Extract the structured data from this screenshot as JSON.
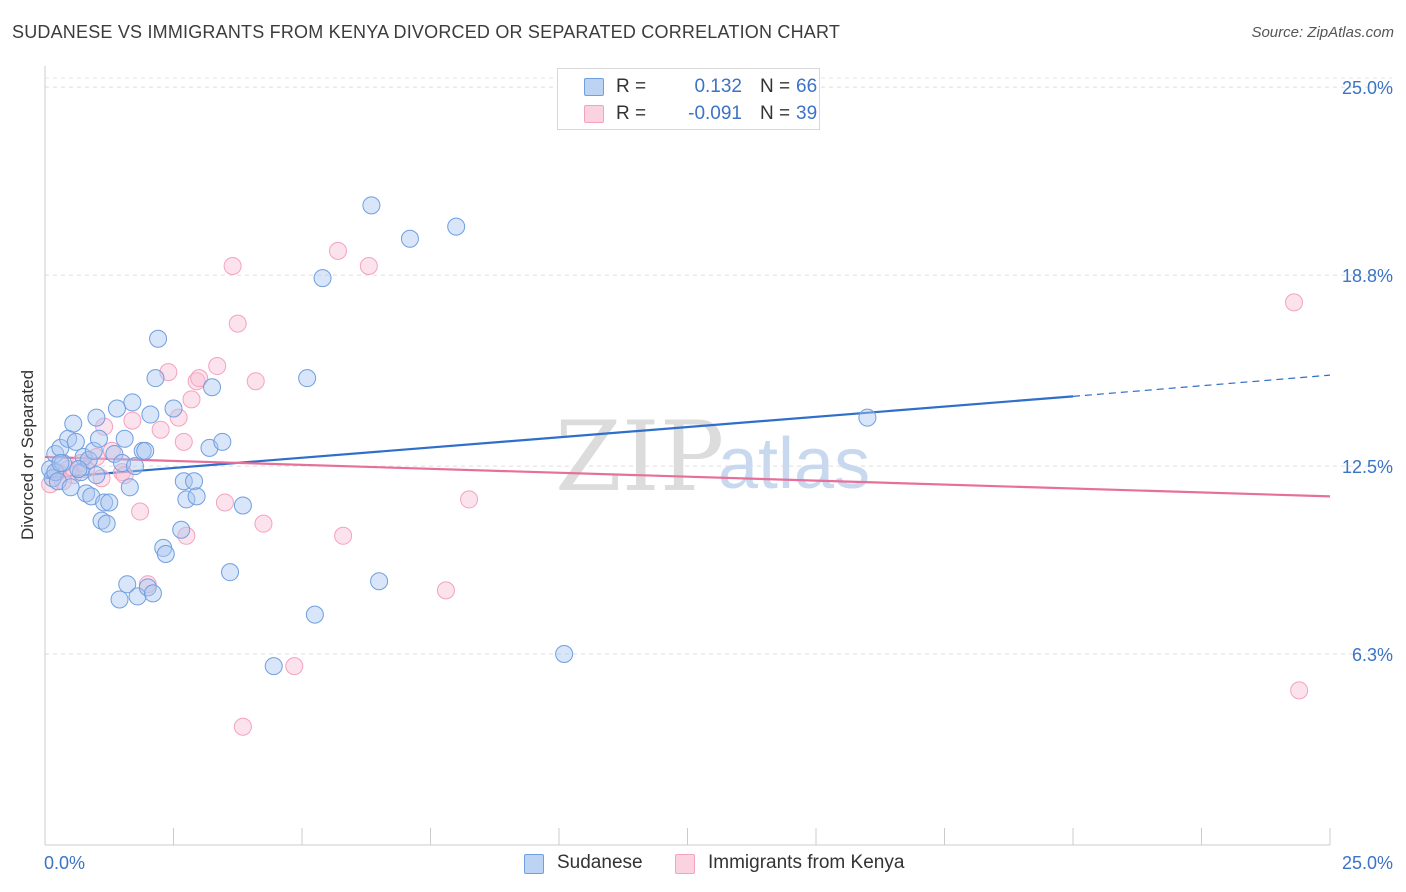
{
  "title": "SUDANESE VS IMMIGRANTS FROM KENYA DIVORCED OR SEPARATED CORRELATION CHART",
  "source": "Source: ZipAtlas.com",
  "watermark": {
    "zip": "ZIP",
    "atlas": "atlas"
  },
  "legend": {
    "r_label": "R =",
    "n_label": "N =",
    "rows": [
      {
        "r": "0.132",
        "n": "66"
      },
      {
        "r": "-0.091",
        "n": "39"
      }
    ]
  },
  "chart_data": {
    "type": "scatter",
    "title": "SUDANESE VS IMMIGRANTS FROM KENYA DIVORCED OR SEPARATED CORRELATION CHART",
    "xlabel": "",
    "ylabel": "Divorced or Separated",
    "xlim": [
      0,
      25
    ],
    "ylim": [
      0,
      25.5
    ],
    "x_tick_labels": [
      "0.0%",
      "25.0%"
    ],
    "y_ticks": [
      6.3,
      12.5,
      18.8,
      25.0
    ],
    "y_tick_labels": [
      "6.3%",
      "12.5%",
      "18.8%",
      "25.0%"
    ],
    "grid": true,
    "legend_position": "bottom",
    "colors": {
      "sudanese": "#6f9fe0",
      "sudanese_line": "#2f6fc9",
      "kenya": "#f3a3bf",
      "kenya_line": "#e6709a",
      "tick_label": "#3b73c5"
    },
    "series": [
      {
        "name": "Sudanese",
        "r": 0.132,
        "n": 66,
        "trend": {
          "x0": 0,
          "y0": 12.1,
          "x1": 20,
          "y1": 14.8,
          "dash_to_x": 25,
          "dash_to_y": 15.5
        },
        "points": [
          [
            0.1,
            12.4
          ],
          [
            0.15,
            12.1
          ],
          [
            0.2,
            12.3
          ],
          [
            0.25,
            12.0
          ],
          [
            0.2,
            12.9
          ],
          [
            0.35,
            12.6
          ],
          [
            0.3,
            13.1
          ],
          [
            0.45,
            13.4
          ],
          [
            0.5,
            11.8
          ],
          [
            0.55,
            13.9
          ],
          [
            0.6,
            13.3
          ],
          [
            0.7,
            12.3
          ],
          [
            0.75,
            12.8
          ],
          [
            0.8,
            11.6
          ],
          [
            0.85,
            12.7
          ],
          [
            0.9,
            11.5
          ],
          [
            0.95,
            13.0
          ],
          [
            1.0,
            12.2
          ],
          [
            1.0,
            14.1
          ],
          [
            1.05,
            13.4
          ],
          [
            1.1,
            10.7
          ],
          [
            1.15,
            11.3
          ],
          [
            1.2,
            10.6
          ],
          [
            1.25,
            11.3
          ],
          [
            1.35,
            12.9
          ],
          [
            1.4,
            14.4
          ],
          [
            1.45,
            8.1
          ],
          [
            1.5,
            12.6
          ],
          [
            1.55,
            13.4
          ],
          [
            1.6,
            8.6
          ],
          [
            1.65,
            11.8
          ],
          [
            1.7,
            14.6
          ],
          [
            1.8,
            8.2
          ],
          [
            1.9,
            13.0
          ],
          [
            1.95,
            13.0
          ],
          [
            2.0,
            8.5
          ],
          [
            2.05,
            14.2
          ],
          [
            2.1,
            8.3
          ],
          [
            2.15,
            15.4
          ],
          [
            2.2,
            16.7
          ],
          [
            2.3,
            9.8
          ],
          [
            2.35,
            9.6
          ],
          [
            2.5,
            14.4
          ],
          [
            2.65,
            10.4
          ],
          [
            2.7,
            12.0
          ],
          [
            2.75,
            11.4
          ],
          [
            2.9,
            12.0
          ],
          [
            2.95,
            11.5
          ],
          [
            3.2,
            13.1
          ],
          [
            3.25,
            15.1
          ],
          [
            3.45,
            13.3
          ],
          [
            3.6,
            9.0
          ],
          [
            3.85,
            11.2
          ],
          [
            4.45,
            5.9
          ],
          [
            5.1,
            15.4
          ],
          [
            5.25,
            7.6
          ],
          [
            5.4,
            18.7
          ],
          [
            6.35,
            21.1
          ],
          [
            6.5,
            8.7
          ],
          [
            7.1,
            20.0
          ],
          [
            8.0,
            20.4
          ],
          [
            10.1,
            6.3
          ],
          [
            16.0,
            14.1
          ],
          [
            0.3,
            12.6
          ],
          [
            0.65,
            12.4
          ],
          [
            1.75,
            12.5
          ]
        ]
      },
      {
        "name": "Immigrants from Kenya",
        "r": -0.091,
        "n": 39,
        "trend": {
          "x0": 0,
          "y0": 12.8,
          "x1": 25,
          "y1": 11.5
        },
        "points": [
          [
            0.1,
            11.9
          ],
          [
            0.25,
            12.3
          ],
          [
            0.45,
            12.4
          ],
          [
            0.55,
            12.2
          ],
          [
            0.7,
            12.6
          ],
          [
            0.8,
            12.4
          ],
          [
            1.0,
            12.8
          ],
          [
            1.1,
            12.1
          ],
          [
            1.15,
            13.8
          ],
          [
            1.3,
            13.0
          ],
          [
            1.5,
            12.3
          ],
          [
            1.55,
            12.2
          ],
          [
            1.7,
            14.0
          ],
          [
            1.85,
            11.0
          ],
          [
            2.0,
            8.6
          ],
          [
            2.25,
            13.7
          ],
          [
            2.4,
            15.6
          ],
          [
            2.6,
            14.1
          ],
          [
            2.7,
            13.3
          ],
          [
            2.75,
            10.2
          ],
          [
            2.85,
            14.7
          ],
          [
            2.95,
            15.3
          ],
          [
            3.0,
            15.4
          ],
          [
            3.35,
            15.8
          ],
          [
            3.5,
            11.3
          ],
          [
            3.65,
            19.1
          ],
          [
            3.75,
            17.2
          ],
          [
            3.85,
            3.9
          ],
          [
            4.1,
            15.3
          ],
          [
            4.25,
            10.6
          ],
          [
            4.85,
            5.9
          ],
          [
            5.7,
            19.6
          ],
          [
            5.8,
            10.2
          ],
          [
            6.3,
            19.1
          ],
          [
            7.8,
            8.4
          ],
          [
            8.25,
            11.4
          ],
          [
            24.3,
            17.9
          ],
          [
            24.4,
            5.1
          ],
          [
            0.35,
            12.0
          ]
        ]
      }
    ]
  }
}
